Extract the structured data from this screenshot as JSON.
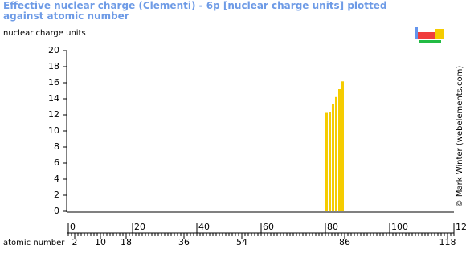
{
  "chart_data": {
    "type": "bar",
    "title": "Effective nuclear charge (Clementi) - 6p [nuclear charge units] plotted against atomic number",
    "y_label": "nuclear charge units",
    "x_label": "atomic number",
    "credit": "© Mark Winter (webelements.com)",
    "x": [
      81,
      82,
      83,
      84,
      85,
      86
    ],
    "values": [
      12.25,
      12.39,
      13.34,
      14.22,
      15.2,
      16.17
    ],
    "color": "#f5cc00",
    "xlim": [
      0,
      120
    ],
    "xticks": [
      0,
      20,
      40,
      60,
      80,
      100,
      120
    ],
    "x2ticks": [
      2,
      10,
      18,
      36,
      54,
      86,
      118
    ],
    "ylim": [
      0,
      20
    ],
    "yticks": [
      0,
      2,
      4,
      6,
      8,
      10,
      12,
      14,
      16,
      18,
      20
    ]
  }
}
